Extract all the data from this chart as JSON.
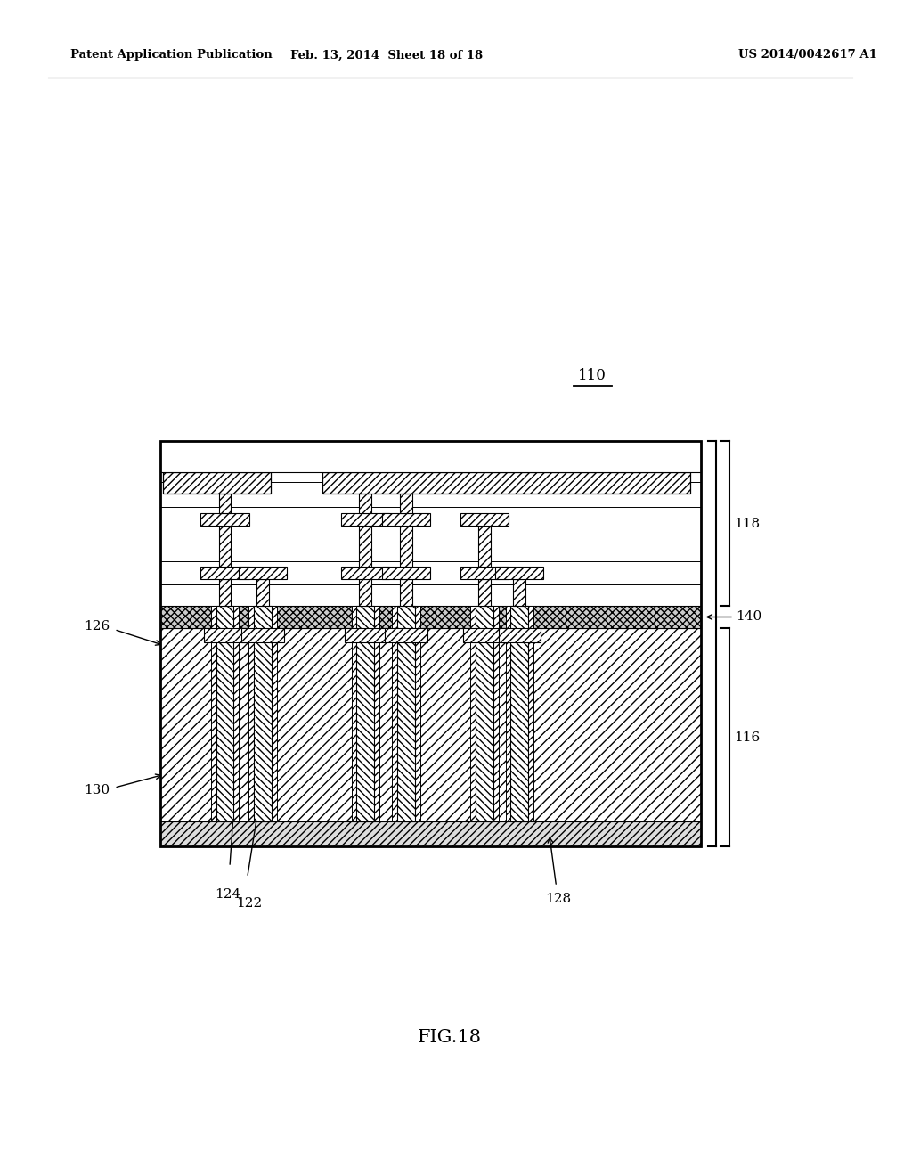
{
  "bg_color": "#ffffff",
  "header_left": "Patent Application Publication",
  "header_mid": "Feb. 13, 2014  Sheet 18 of 18",
  "header_right": "US 2014/0042617 A1",
  "fig_label": "FIG.18",
  "ref_110": "110",
  "ref_116": "116",
  "ref_118": "118",
  "ref_122": "122",
  "ref_124": "124",
  "ref_126": "126",
  "ref_128": "128",
  "ref_130": "130",
  "ref_140": "140",
  "black": "#000000",
  "lw": 1.5,
  "lw2": 2.0,
  "lw_thin": 0.8
}
